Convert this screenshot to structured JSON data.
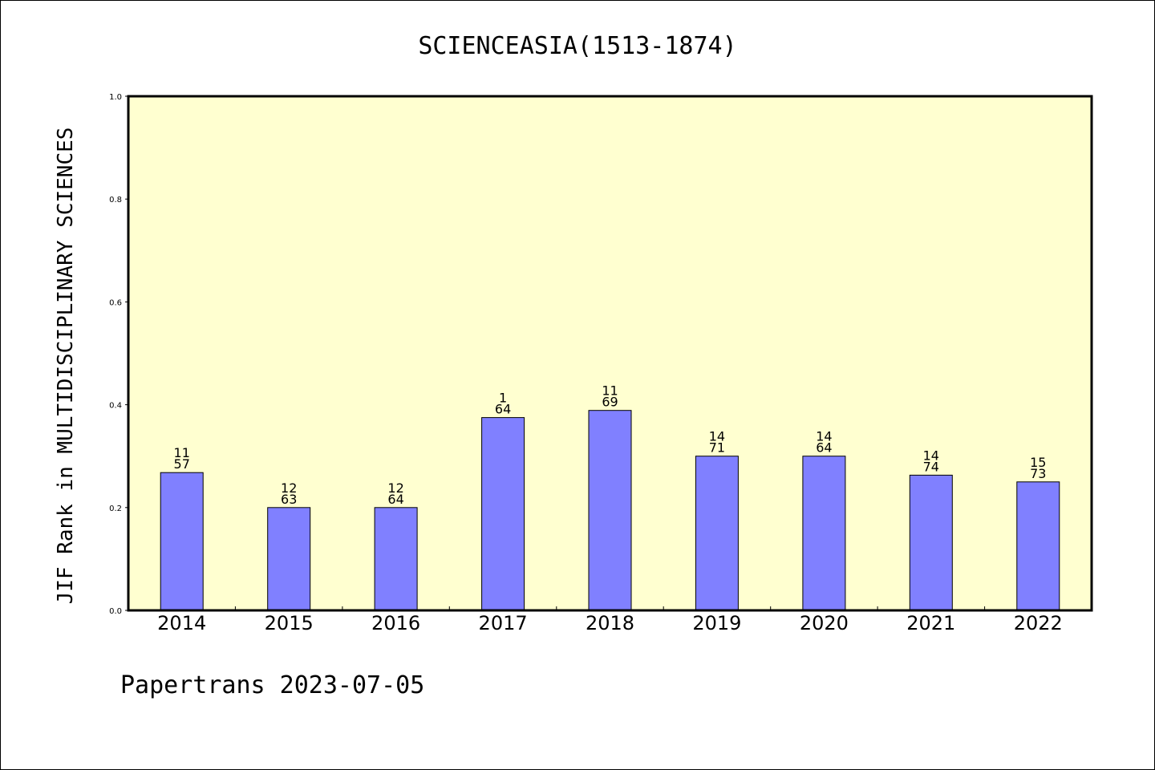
{
  "chart_data": {
    "type": "bar",
    "title": "SCIENCEASIA(1513-1874)",
    "xlabel": "",
    "ylabel": "JIF Rank in MULTIDISCIPLINARY SCIENCES",
    "ylim": [
      0,
      1.0
    ],
    "yticks": [
      "0.0",
      "0.2",
      "0.4",
      "0.6",
      "0.8",
      "1.0"
    ],
    "categories": [
      "2014",
      "2015",
      "2016",
      "2017",
      "2018",
      "2019",
      "2020",
      "2021",
      "2022"
    ],
    "values": [
      0.268,
      0.2,
      0.2,
      0.375,
      0.389,
      0.3,
      0.3,
      0.263,
      0.25
    ],
    "rank": [
      "11",
      "12",
      "12",
      "1",
      "11",
      "14",
      "14",
      "14",
      "15"
    ],
    "total": [
      "57",
      "63",
      "64",
      "64",
      "69",
      "71",
      "64",
      "74",
      "73"
    ],
    "grid": false,
    "legend": "none",
    "colors": {
      "plot_background": "#ffffd0",
      "bar_fill": "#8080ff",
      "bar_stroke": "#000000"
    }
  },
  "footer": "Papertrans 2023-07-05"
}
